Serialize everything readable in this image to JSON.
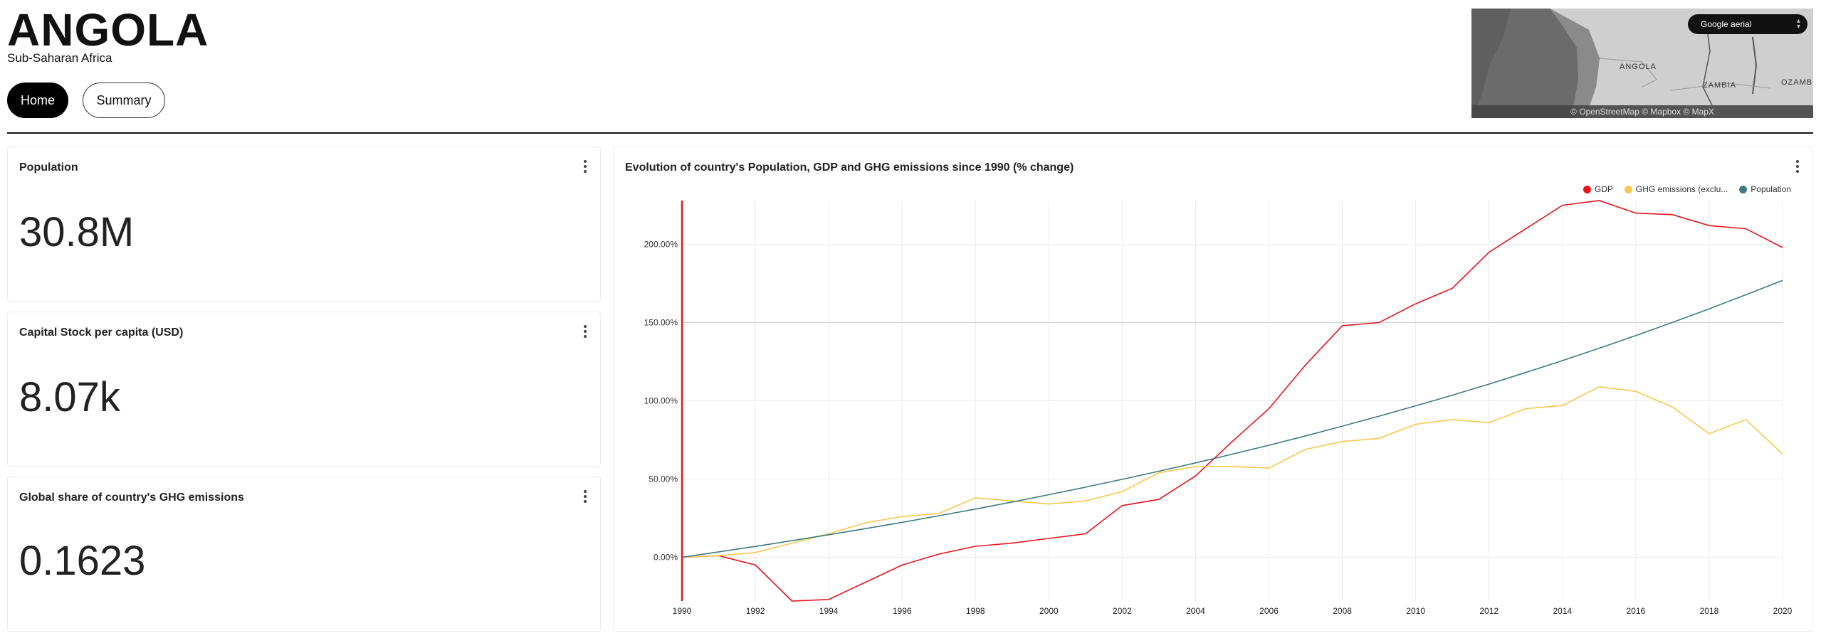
{
  "header": {
    "country": "ANGOLA",
    "region": "Sub-Saharan Africa"
  },
  "nav": {
    "home_label": "Home",
    "summary_label": "Summary"
  },
  "map": {
    "layer_select": "Google aerial",
    "attribution": "© OpenStreetMap © Mapbox © MapX",
    "labels": [
      "ANGOLA",
      "ZAMBIA",
      "OZAMBI"
    ]
  },
  "kpis": [
    {
      "title": "Population",
      "value": "30.8M"
    },
    {
      "title": "Capital Stock per capita (USD)",
      "value": "8.07k"
    },
    {
      "title": "Global share of country's GHG emissions",
      "value": "0.1623"
    }
  ],
  "chart_card": {
    "title": "Evolution of country's Population, GDP and GHG emissions since 1990 (% change)"
  },
  "chart_data": {
    "type": "line",
    "title": "Evolution of country's Population, GDP and GHG emissions since 1990 (% change)",
    "x": [
      1990,
      1991,
      1992,
      1993,
      1994,
      1995,
      1996,
      1997,
      1998,
      1999,
      2000,
      2001,
      2002,
      2003,
      2004,
      2005,
      2006,
      2007,
      2008,
      2009,
      2010,
      2011,
      2012,
      2013,
      2014,
      2015,
      2016,
      2017,
      2018,
      2019,
      2020
    ],
    "xticks": [
      1990,
      1992,
      1994,
      1996,
      1998,
      2000,
      2002,
      2004,
      2006,
      2008,
      2010,
      2012,
      2014,
      2016,
      2018,
      2020
    ],
    "yticks": [
      0,
      50,
      100,
      150,
      200
    ],
    "ytick_labels": [
      "0.00%",
      "50.00%",
      "100.00%",
      "150.00%",
      "200.00%"
    ],
    "ylim": [
      -28,
      228
    ],
    "xlim": [
      1990,
      2020
    ],
    "grid": true,
    "legend_position": "top-right",
    "series": [
      {
        "name": "GDP",
        "color": "#e8141c",
        "values": [
          0,
          1,
          -5,
          -28,
          -27,
          -16,
          -5,
          2,
          7,
          9,
          12,
          15,
          33,
          37,
          52,
          74,
          95,
          123,
          148,
          150,
          162,
          172,
          195,
          210,
          225,
          228,
          220,
          219,
          212,
          210,
          198
        ]
      },
      {
        "name": "GHG emissions (exclu...",
        "color": "#f9c74f",
        "values": [
          0,
          1,
          3,
          9,
          15,
          22,
          26,
          28,
          38,
          36,
          34,
          36,
          42,
          54,
          58,
          58,
          57,
          69,
          74,
          76,
          85,
          88,
          86,
          95,
          97,
          109,
          106,
          96,
          79,
          88,
          66
        ]
      },
      {
        "name": "Population",
        "color": "#3d7b80",
        "values": [
          0,
          3.4,
          6.9,
          10.6,
          14.4,
          18.3,
          22.3,
          26.5,
          30.8,
          35.3,
          40,
          44.8,
          49.8,
          55,
          60.3,
          65.9,
          71.6,
          77.6,
          83.8,
          90.2,
          96.8,
          103.6,
          110.7,
          118.1,
          125.7,
          133.6,
          141.7,
          150.1,
          158.8,
          167.8,
          177
        ]
      }
    ]
  }
}
